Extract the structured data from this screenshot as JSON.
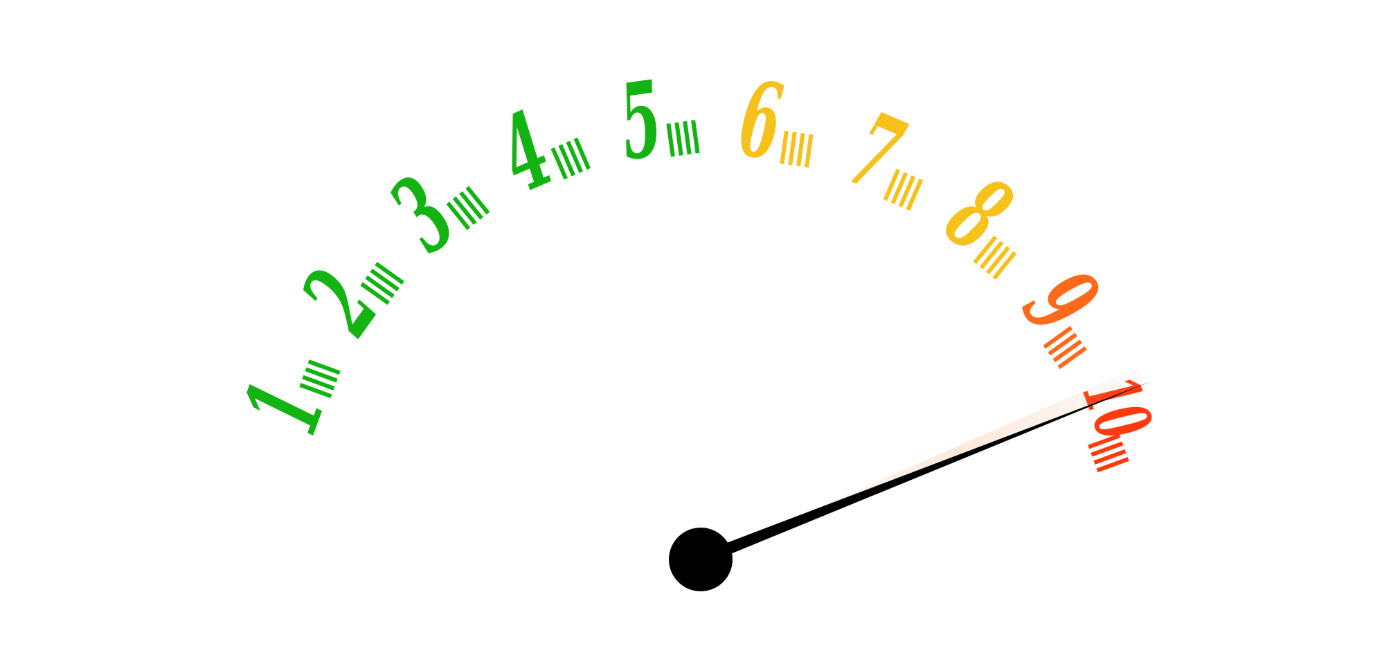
{
  "gauge": {
    "scale_min": 1,
    "scale_max": 10,
    "needle_value": 9.9,
    "labels": [
      {
        "text": "1",
        "color": "#12b312"
      },
      {
        "text": "2",
        "color": "#12b312"
      },
      {
        "text": "3",
        "color": "#12b312"
      },
      {
        "text": "4",
        "color": "#12b312"
      },
      {
        "text": "5",
        "color": "#12b312"
      },
      {
        "text": "6",
        "color": "#f5c11a"
      },
      {
        "text": "7",
        "color": "#f5c11a"
      },
      {
        "text": "8",
        "color": "#f5c11a"
      },
      {
        "text": "9",
        "color": "#ff6a1a"
      },
      {
        "text": "10",
        "color": "#ff3a0e"
      }
    ],
    "needle_color": "#000000",
    "hub_color": "#000000",
    "motion_trail_color": "#f3a36b",
    "tick_marks_per_label": 4,
    "needle_icon": "speedometer-needle-icon",
    "hub_icon": "needle-hub-icon"
  }
}
